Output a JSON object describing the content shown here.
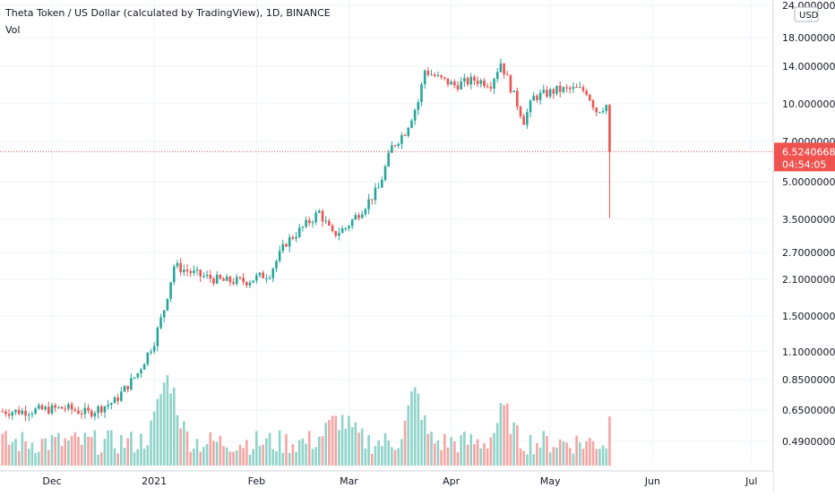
{
  "header": {
    "title": "Theta Token / US Dollar (calculated by TradingView), 1D, BINANCE",
    "volume_label": "Vol"
  },
  "price_axis": {
    "currency_label": "USD",
    "ticks": [
      "24.00000000",
      "18.00000000",
      "14.00000000",
      "10.00000000",
      "7.00000000",
      "5.00000000",
      "3.50000000",
      "2.70000000",
      "2.10000000",
      "1.50000000",
      "1.10000000",
      "0.85000000",
      "0.65000000",
      "0.49000000"
    ],
    "current_price": "6.52406680",
    "countdown": "04:54:05"
  },
  "time_axis": {
    "labels": [
      "Dec",
      "2021",
      "Feb",
      "Mar",
      "Apr",
      "May",
      "Jun",
      "Jul"
    ]
  },
  "colors": {
    "up": "#26a69a",
    "down": "#ef5350",
    "vol_up": "#8fd3c9",
    "vol_down": "#f5a5a3",
    "grid": "#f0f3fa",
    "axis_text": "#131722",
    "price_line": "#ef5350"
  },
  "chart_data": {
    "type": "candlestick",
    "symbol": "Theta Token / US Dollar",
    "interval": "1D",
    "exchange": "BINANCE",
    "scale": "log",
    "ylim": [
      0.42,
      24.5
    ],
    "current_price": 6.5240668,
    "anchors": [
      {
        "date": "2020-11-22",
        "close": 0.64
      },
      {
        "date": "2020-12-05",
        "close": 0.66
      },
      {
        "date": "2020-12-12",
        "close": 0.63
      },
      {
        "date": "2020-12-20",
        "close": 0.7
      },
      {
        "date": "2020-12-27",
        "close": 0.9
      },
      {
        "date": "2021-01-01",
        "close": 1.2
      },
      {
        "date": "2021-01-04",
        "close": 1.6
      },
      {
        "date": "2021-01-07",
        "close": 2.35
      },
      {
        "date": "2021-01-15",
        "close": 2.15
      },
      {
        "date": "2021-01-22",
        "close": 2.05
      },
      {
        "date": "2021-01-29",
        "close": 2.05
      },
      {
        "date": "2021-02-05",
        "close": 2.2
      },
      {
        "date": "2021-02-10",
        "close": 2.9
      },
      {
        "date": "2021-02-16",
        "close": 3.4
      },
      {
        "date": "2021-02-20",
        "close": 3.8
      },
      {
        "date": "2021-02-24",
        "close": 3.1
      },
      {
        "date": "2021-02-28",
        "close": 3.3
      },
      {
        "date": "2021-03-05",
        "close": 3.9
      },
      {
        "date": "2021-03-10",
        "close": 4.7
      },
      {
        "date": "2021-03-14",
        "close": 6.8
      },
      {
        "date": "2021-03-18",
        "close": 7.8
      },
      {
        "date": "2021-03-22",
        "close": 10.2
      },
      {
        "date": "2021-03-24",
        "close": 13.5
      },
      {
        "date": "2021-03-28",
        "close": 12.6
      },
      {
        "date": "2021-04-02",
        "close": 11.8
      },
      {
        "date": "2021-04-08",
        "close": 12.4
      },
      {
        "date": "2021-04-13",
        "close": 12.0
      },
      {
        "date": "2021-04-16",
        "close": 14.5
      },
      {
        "date": "2021-04-19",
        "close": 11.6
      },
      {
        "date": "2021-04-23",
        "close": 8.6
      },
      {
        "date": "2021-04-26",
        "close": 10.6
      },
      {
        "date": "2021-05-03",
        "close": 11.3
      },
      {
        "date": "2021-05-09",
        "close": 11.4
      },
      {
        "date": "2021-05-12",
        "close": 11.2
      },
      {
        "date": "2021-05-15",
        "close": 9.4
      },
      {
        "date": "2021-05-18",
        "close": 9.9
      },
      {
        "date": "2021-05-19",
        "close": 6.52
      }
    ],
    "last_candle": {
      "date": "2021-05-19",
      "open": 9.9,
      "high": 10.0,
      "low": 3.6,
      "close": 6.52
    },
    "volume_note": "volume bars in arbitrary relative units, peaks around 2021-01-07 and 2021-03-21"
  }
}
